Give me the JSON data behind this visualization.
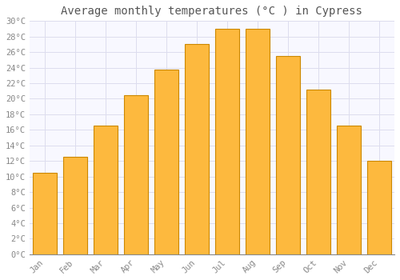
{
  "title": "Average monthly temperatures (°C ) in Cypress",
  "months": [
    "Jan",
    "Feb",
    "Mar",
    "Apr",
    "May",
    "Jun",
    "Jul",
    "Aug",
    "Sep",
    "Oct",
    "Nov",
    "Dec"
  ],
  "values": [
    10.5,
    12.5,
    16.5,
    20.5,
    23.8,
    27.0,
    29.0,
    29.0,
    25.5,
    21.2,
    16.5,
    12.0
  ],
  "bar_color": "#FDB93E",
  "bar_edge_color": "#CC8800",
  "background_color": "#FFFFFF",
  "plot_bg_color": "#F8F8FF",
  "grid_color": "#DDDDEE",
  "text_color": "#888888",
  "title_color": "#555555",
  "ylim": [
    0,
    30
  ],
  "ytick_step": 2,
  "title_fontsize": 10,
  "tick_fontsize": 7.5,
  "font_family": "monospace"
}
